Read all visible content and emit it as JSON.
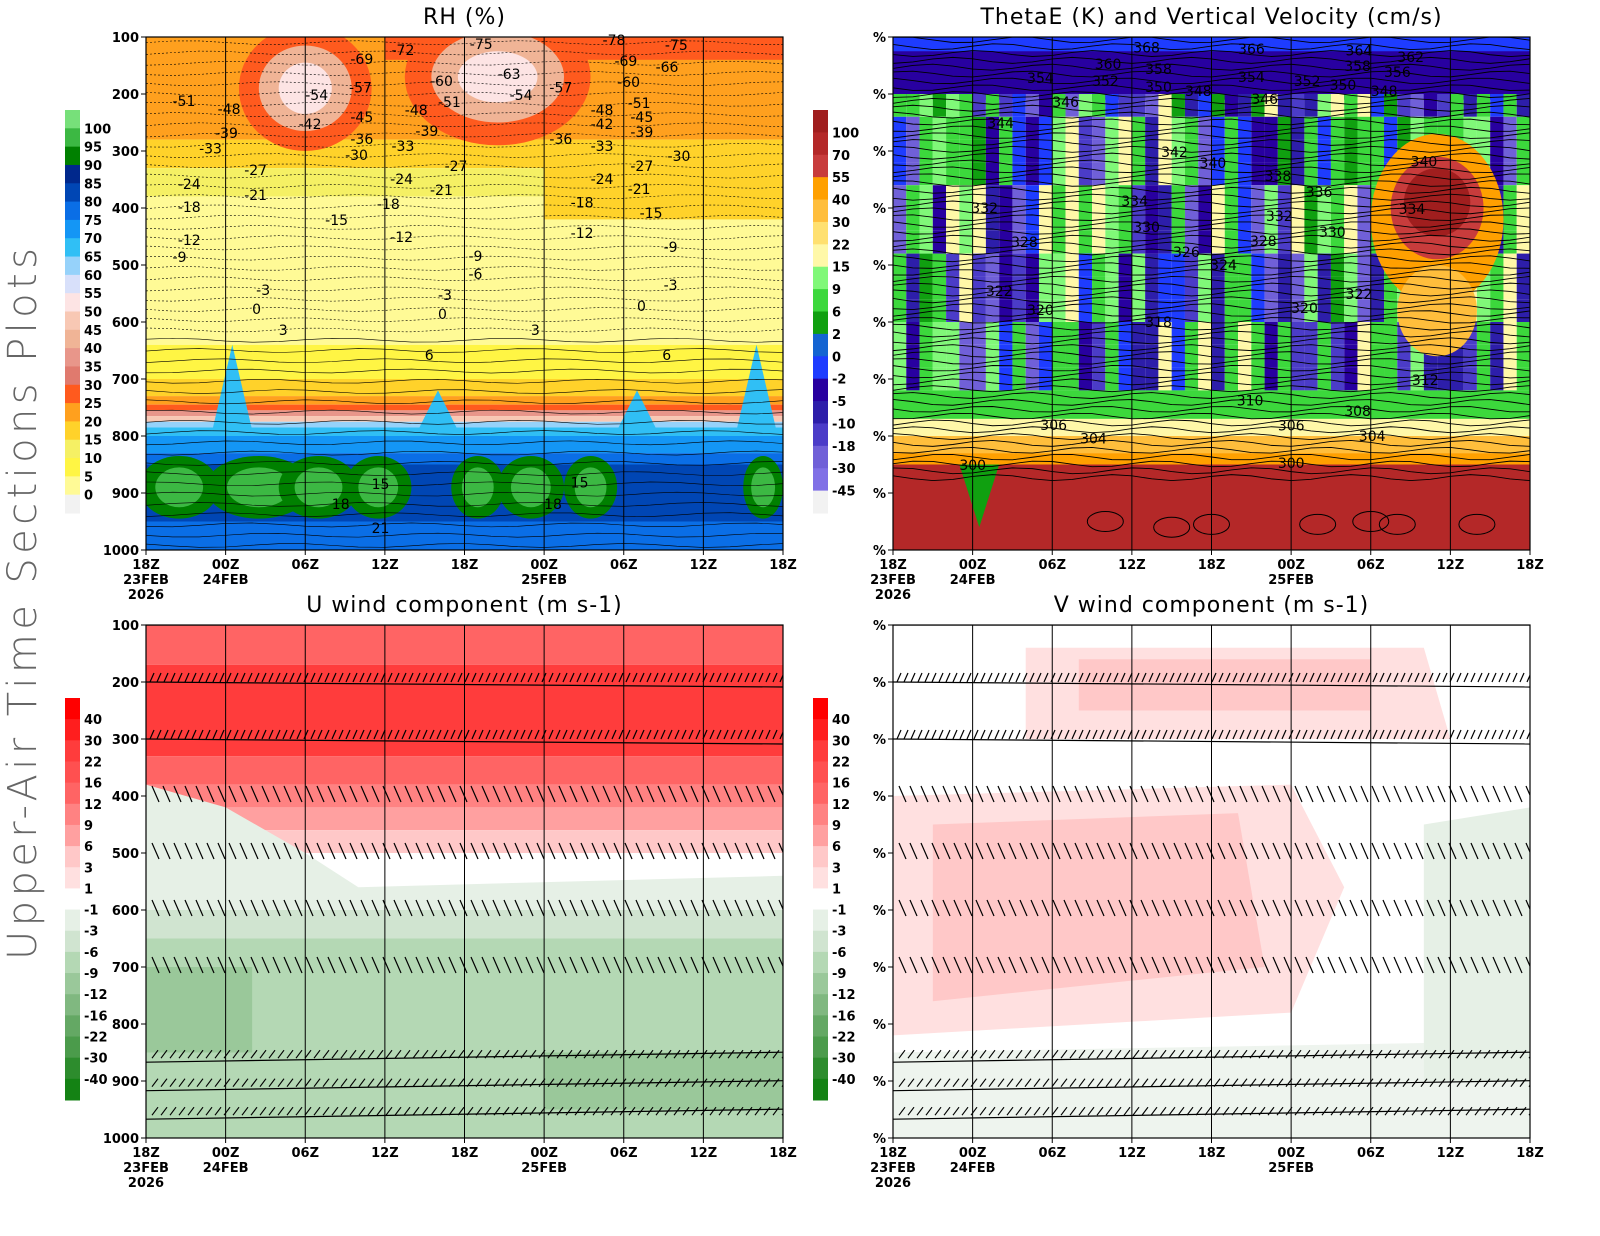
{
  "page": {
    "side_title": "Upper-Air Time Sections Plots"
  },
  "time_axis": [
    {
      "label": "18Z",
      "date": "23FEB",
      "year": "2026"
    },
    {
      "label": "00Z",
      "date": "24FEB"
    },
    {
      "label": "06Z"
    },
    {
      "label": "12Z"
    },
    {
      "label": "18Z"
    },
    {
      "label": "00Z",
      "date": "25FEB"
    },
    {
      "label": "06Z"
    },
    {
      "label": "12Z"
    },
    {
      "label": "18Z"
    }
  ],
  "chart_data": [
    {
      "type": "heatmap",
      "title": "RH (%)",
      "x_unit": "hours since 18Z 23FEB 2026",
      "xlim": [
        0,
        48
      ],
      "ylim": [
        1000,
        100
      ],
      "y_ticks": [
        "100",
        "200",
        "300",
        "400",
        "500",
        "600",
        "700",
        "800",
        "900",
        "1000"
      ],
      "colorbar": {
        "labels": [
          "100",
          "95",
          "90",
          "85",
          "80",
          "75",
          "70",
          "65",
          "60",
          "55",
          "50",
          "45",
          "40",
          "35",
          "30",
          "25",
          "20",
          "15",
          "10",
          "5",
          "0"
        ],
        "colors": [
          "#77e07a",
          "#3cb843",
          "#008000",
          "#00288c",
          "#0046b4",
          "#0a6ee6",
          "#1496f5",
          "#30bff5",
          "#96d2fa",
          "#d8e0fa",
          "#fde4e4",
          "#f8c8b4",
          "#f0b496",
          "#e8968a",
          "#e07a6e",
          "#ff5a1e",
          "#ffa01e",
          "#ffd22a",
          "#f5f064",
          "#fff544",
          "#fffa96",
          "#f2f2f2"
        ]
      },
      "contour_labels": [
        [
          15.4,
          139,
          "-69"
        ],
        [
          18.5,
          123,
          "-72"
        ],
        [
          24.4,
          112,
          "-75"
        ],
        [
          34.4,
          105,
          "-78"
        ],
        [
          39.1,
          114,
          "-75"
        ],
        [
          2,
          212,
          "-51"
        ],
        [
          5.4,
          226,
          "-48"
        ],
        [
          5.2,
          268,
          "-39"
        ],
        [
          4,
          296,
          "-33"
        ],
        [
          12,
          202,
          "-54"
        ],
        [
          15.3,
          189,
          "-57"
        ],
        [
          11.5,
          253,
          "-42"
        ],
        [
          15.4,
          240,
          "-45"
        ],
        [
          15.4,
          279,
          "-36"
        ],
        [
          15,
          307,
          "-30"
        ],
        [
          21.4,
          177,
          "-60"
        ],
        [
          26.5,
          165,
          "-63"
        ],
        [
          27.4,
          202,
          "-54"
        ],
        [
          30.4,
          189,
          "-57"
        ],
        [
          22,
          214,
          "-51"
        ],
        [
          19.5,
          228,
          "-48"
        ],
        [
          20.3,
          265,
          "-39"
        ],
        [
          18.5,
          291,
          "-33"
        ],
        [
          30.4,
          279,
          "-36"
        ],
        [
          35.3,
          142,
          "-69"
        ],
        [
          38.4,
          153,
          "-66"
        ],
        [
          35.5,
          179,
          "-60"
        ],
        [
          36.3,
          216,
          "-51"
        ],
        [
          33.5,
          228,
          "-48"
        ],
        [
          36.5,
          240,
          "-45"
        ],
        [
          33.5,
          253,
          "-42"
        ],
        [
          36.5,
          267,
          "-39"
        ],
        [
          33.5,
          291,
          "-33"
        ],
        [
          39.3,
          309,
          "-30"
        ],
        [
          36.5,
          326,
          "-27"
        ],
        [
          33.5,
          349,
          "-24"
        ],
        [
          36.3,
          367,
          "-21"
        ],
        [
          32,
          390,
          "-18"
        ],
        [
          37.2,
          409,
          "-15"
        ],
        [
          32,
          444,
          "-12"
        ],
        [
          39,
          468,
          "-9"
        ],
        [
          39,
          535,
          "-3"
        ],
        [
          37,
          572,
          "0"
        ],
        [
          38.9,
          658,
          "6"
        ],
        [
          2.4,
          358,
          "-24"
        ],
        [
          2.4,
          398,
          "-18"
        ],
        [
          7.4,
          333,
          "-27"
        ],
        [
          7.4,
          377,
          "-21"
        ],
        [
          2.4,
          456,
          "-12"
        ],
        [
          2,
          486,
          "-9"
        ],
        [
          13.5,
          421,
          "-15"
        ],
        [
          18.4,
          349,
          "-24"
        ],
        [
          21.4,
          368,
          "-21"
        ],
        [
          22.5,
          326,
          "-27"
        ],
        [
          17.4,
          393,
          "-18"
        ],
        [
          18.4,
          451,
          "-12"
        ],
        [
          24.3,
          484,
          "-9"
        ],
        [
          24.3,
          516,
          "-6"
        ],
        [
          22,
          553,
          "-3"
        ],
        [
          22,
          586,
          "0"
        ],
        [
          8.3,
          544,
          "-3"
        ],
        [
          8,
          577,
          "0"
        ],
        [
          10,
          614,
          "3"
        ],
        [
          21,
          658,
          "6"
        ],
        [
          29,
          614,
          "3"
        ],
        [
          17,
          884,
          "15"
        ],
        [
          14,
          919,
          "18"
        ],
        [
          17,
          961,
          "21"
        ],
        [
          32,
          882,
          "15"
        ],
        [
          30,
          919,
          "18"
        ]
      ]
    },
    {
      "type": "heatmap",
      "title": "ThetaE (K) and Vertical Velocity (cm/s)",
      "xlim": [
        0,
        48
      ],
      "ylim": [
        1000,
        100
      ],
      "y_ticks": [
        "%",
        "%",
        "%",
        "%",
        "%",
        "%",
        "%",
        "%",
        "%",
        "%"
      ],
      "colorbar": {
        "labels": [
          "100",
          "70",
          "55",
          "40",
          "30",
          "22",
          "15",
          "9",
          "6",
          "2",
          "0",
          "-2",
          "-5",
          "-10",
          "-18",
          "-30",
          "-45"
        ],
        "colors": [
          "#a01e1e",
          "#b42828",
          "#c83c3c",
          "#ffa000",
          "#ffbe3c",
          "#ffe070",
          "#fff8a8",
          "#80f878",
          "#3cd83c",
          "#10a010",
          "#1464d2",
          "#1e3cff",
          "#2800a0",
          "#2d1eaa",
          "#4b3cc8",
          "#7060d8",
          "#8070e6",
          "#f2f2f2"
        ]
      },
      "contour_labels": [
        [
          18.1,
          118,
          "368"
        ],
        [
          26,
          121,
          "366"
        ],
        [
          34.1,
          124,
          "364"
        ],
        [
          38,
          135,
          "362"
        ],
        [
          15.2,
          147,
          "360"
        ],
        [
          19,
          156,
          "358"
        ],
        [
          34,
          151,
          "358"
        ],
        [
          37,
          161,
          "356"
        ],
        [
          10.1,
          172,
          "354"
        ],
        [
          15,
          177,
          "352"
        ],
        [
          26,
          170,
          "354"
        ],
        [
          30.2,
          177,
          "352"
        ],
        [
          19,
          188,
          "350"
        ],
        [
          22,
          195,
          "348"
        ],
        [
          32.9,
          184,
          "350"
        ],
        [
          36,
          195,
          "348"
        ],
        [
          12,
          214,
          "346"
        ],
        [
          27,
          209,
          "346"
        ],
        [
          7.1,
          251,
          "344"
        ],
        [
          20.2,
          302,
          "342"
        ],
        [
          23.1,
          321,
          "340"
        ],
        [
          28,
          344,
          "338"
        ],
        [
          31.1,
          372,
          "336"
        ],
        [
          39,
          318,
          "340"
        ],
        [
          17.2,
          388,
          "334"
        ],
        [
          5.9,
          400,
          "332"
        ],
        [
          28.1,
          414,
          "332"
        ],
        [
          38.1,
          402,
          "334"
        ],
        [
          18.1,
          433,
          "330"
        ],
        [
          32.1,
          442,
          "330"
        ],
        [
          8.9,
          460,
          "328"
        ],
        [
          26.9,
          458,
          "328"
        ],
        [
          21.1,
          477,
          "326"
        ],
        [
          23.9,
          500,
          "324"
        ],
        [
          7,
          546,
          "322"
        ],
        [
          10.1,
          579,
          "320"
        ],
        [
          34.1,
          551,
          "322"
        ],
        [
          30,
          575,
          "320"
        ],
        [
          19,
          600,
          "318"
        ],
        [
          39.1,
          702,
          "312"
        ],
        [
          25.9,
          738,
          "310"
        ],
        [
          34,
          756,
          "308"
        ],
        [
          11.1,
          781,
          "306"
        ],
        [
          14.1,
          804,
          "304"
        ],
        [
          29,
          782,
          "306"
        ],
        [
          35.1,
          800,
          "304"
        ],
        [
          5,
          851,
          "300"
        ],
        [
          29,
          847,
          "300"
        ]
      ]
    },
    {
      "type": "heatmap",
      "title": "U wind component (m s-1)",
      "xlim": [
        0,
        48
      ],
      "ylim": [
        1000,
        100
      ],
      "y_ticks": [
        "100",
        "200",
        "300",
        "400",
        "500",
        "600",
        "700",
        "800",
        "900",
        "1000"
      ],
      "colorbar": {
        "labels": [
          "40",
          "30",
          "22",
          "16",
          "12",
          "9",
          "6",
          "3",
          "1",
          "-1",
          "-3",
          "-6",
          "-9",
          "-12",
          "-16",
          "-22",
          "-30",
          "-40"
        ],
        "colors": [
          "#ff0000",
          "#ff1e1e",
          "#ff3c3c",
          "#ff5050",
          "#ff6464",
          "#ff8282",
          "#ffa0a0",
          "#ffc8c8",
          "#ffe0e0",
          "#ffffff",
          "#e6f0e6",
          "#d0e4d0",
          "#b4d8b4",
          "#9ac89a",
          "#80b880",
          "#64a864",
          "#4b9b4b",
          "#2d8c2d",
          "#148214"
        ]
      }
    },
    {
      "type": "heatmap",
      "title": "V wind component (m s-1)",
      "xlim": [
        0,
        48
      ],
      "ylim": [
        1000,
        100
      ],
      "y_ticks": [
        "%",
        "%",
        "%",
        "%",
        "%",
        "%",
        "%",
        "%",
        "%",
        "%"
      ],
      "colorbar": {
        "labels": [
          "40",
          "30",
          "22",
          "16",
          "12",
          "9",
          "6",
          "3",
          "1",
          "-1",
          "-3",
          "-6",
          "-9",
          "-12",
          "-16",
          "-22",
          "-30",
          "-40"
        ],
        "colors": [
          "#ff0000",
          "#ff1e1e",
          "#ff3c3c",
          "#ff5050",
          "#ff6464",
          "#ff8282",
          "#ffa0a0",
          "#ffc8c8",
          "#ffe0e0",
          "#ffffff",
          "#e6f0e6",
          "#d0e4d0",
          "#b4d8b4",
          "#9ac89a",
          "#80b880",
          "#64a864",
          "#4b9b4b",
          "#2d8c2d",
          "#148214"
        ]
      }
    }
  ]
}
